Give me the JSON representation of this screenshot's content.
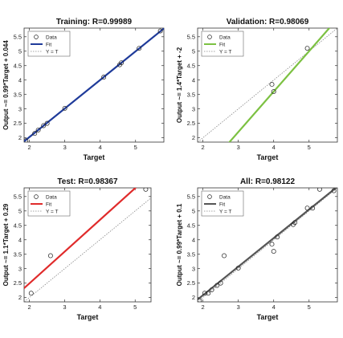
{
  "chart_data": [
    {
      "type": "scatter",
      "title": "Training: R=0.99989",
      "xlabel": "Target",
      "ylabel": "Output ~= 0.99*Target + 0.044",
      "xlim": [
        1.85,
        5.8
      ],
      "ylim": [
        1.85,
        5.8
      ],
      "xticks": [
        2,
        3,
        4,
        5
      ],
      "yticks": [
        2,
        2.5,
        3,
        3.5,
        4,
        4.5,
        5,
        5.5
      ],
      "fit": {
        "slope": 0.99,
        "intercept": 0.044,
        "color": "#1f3b9a"
      },
      "points": [
        [
          1.9,
          1.9
        ],
        [
          2.15,
          2.15
        ],
        [
          2.25,
          2.27
        ],
        [
          2.4,
          2.42
        ],
        [
          2.5,
          2.5
        ],
        [
          3.0,
          3.02
        ],
        [
          4.1,
          4.1
        ],
        [
          4.55,
          4.53
        ],
        [
          4.6,
          4.6
        ],
        [
          5.1,
          5.1
        ],
        [
          5.7,
          5.7
        ]
      ],
      "legend": [
        "Data",
        "Fit",
        "Y = T"
      ],
      "legend_position": "top-left",
      "grid": false
    },
    {
      "type": "scatter",
      "title": "Validation: R=0.98069",
      "xlabel": "Target",
      "ylabel": "Output ~= 1.4*Target + -2",
      "xlim": [
        1.85,
        5.8
      ],
      "ylim": [
        1.85,
        5.8
      ],
      "xticks": [
        2,
        3,
        4,
        5
      ],
      "yticks": [
        2,
        2.5,
        3,
        3.5,
        4,
        4.5,
        5,
        5.5
      ],
      "fit": {
        "slope": 1.4,
        "intercept": -2,
        "color": "#7cc142"
      },
      "points": [
        [
          3.95,
          3.85
        ],
        [
          4.0,
          3.6
        ],
        [
          4.95,
          5.1
        ]
      ],
      "legend": [
        "Data",
        "Fit",
        "Y = T"
      ],
      "legend_position": "top-left",
      "grid": false
    },
    {
      "type": "scatter",
      "title": "Test: R=0.98367",
      "xlabel": "Target",
      "ylabel": "Output ~= 1.1*Target + 0.29",
      "xlim": [
        1.85,
        5.45
      ],
      "ylim": [
        1.85,
        5.8
      ],
      "xticks": [
        2,
        3,
        4,
        5
      ],
      "yticks": [
        2,
        2.5,
        3,
        3.5,
        4,
        4.5,
        5,
        5.5
      ],
      "fit": {
        "slope": 1.1,
        "intercept": 0.29,
        "color": "#e02b2b"
      },
      "points": [
        [
          2.05,
          2.15
        ],
        [
          2.6,
          3.45
        ],
        [
          5.3,
          5.75
        ]
      ],
      "legend": [
        "Data",
        "Fit",
        "Y = T"
      ],
      "legend_position": "top-left",
      "grid": false
    },
    {
      "type": "scatter",
      "title": "All: R=0.98122",
      "xlabel": "Target",
      "ylabel": "Output ~= 0.99*Target + 0.1",
      "xlim": [
        1.85,
        5.8
      ],
      "ylim": [
        1.85,
        5.8
      ],
      "xticks": [
        2,
        3,
        4,
        5
      ],
      "yticks": [
        2,
        2.5,
        3,
        3.5,
        4,
        4.5,
        5,
        5.5
      ],
      "fit": {
        "slope": 0.99,
        "intercept": 0.1,
        "color": "#555555"
      },
      "points": [
        [
          1.9,
          1.9
        ],
        [
          2.05,
          2.15
        ],
        [
          2.15,
          2.15
        ],
        [
          2.25,
          2.27
        ],
        [
          2.4,
          2.42
        ],
        [
          2.5,
          2.5
        ],
        [
          2.6,
          3.45
        ],
        [
          3.0,
          3.02
        ],
        [
          3.95,
          3.85
        ],
        [
          4.0,
          3.6
        ],
        [
          4.1,
          4.1
        ],
        [
          4.55,
          4.53
        ],
        [
          4.6,
          4.6
        ],
        [
          4.95,
          5.1
        ],
        [
          5.1,
          5.1
        ],
        [
          5.3,
          5.75
        ],
        [
          5.7,
          5.7
        ]
      ],
      "legend": [
        "Data",
        "Fit",
        "Y = T"
      ],
      "legend_position": "top-left",
      "grid": false
    }
  ]
}
